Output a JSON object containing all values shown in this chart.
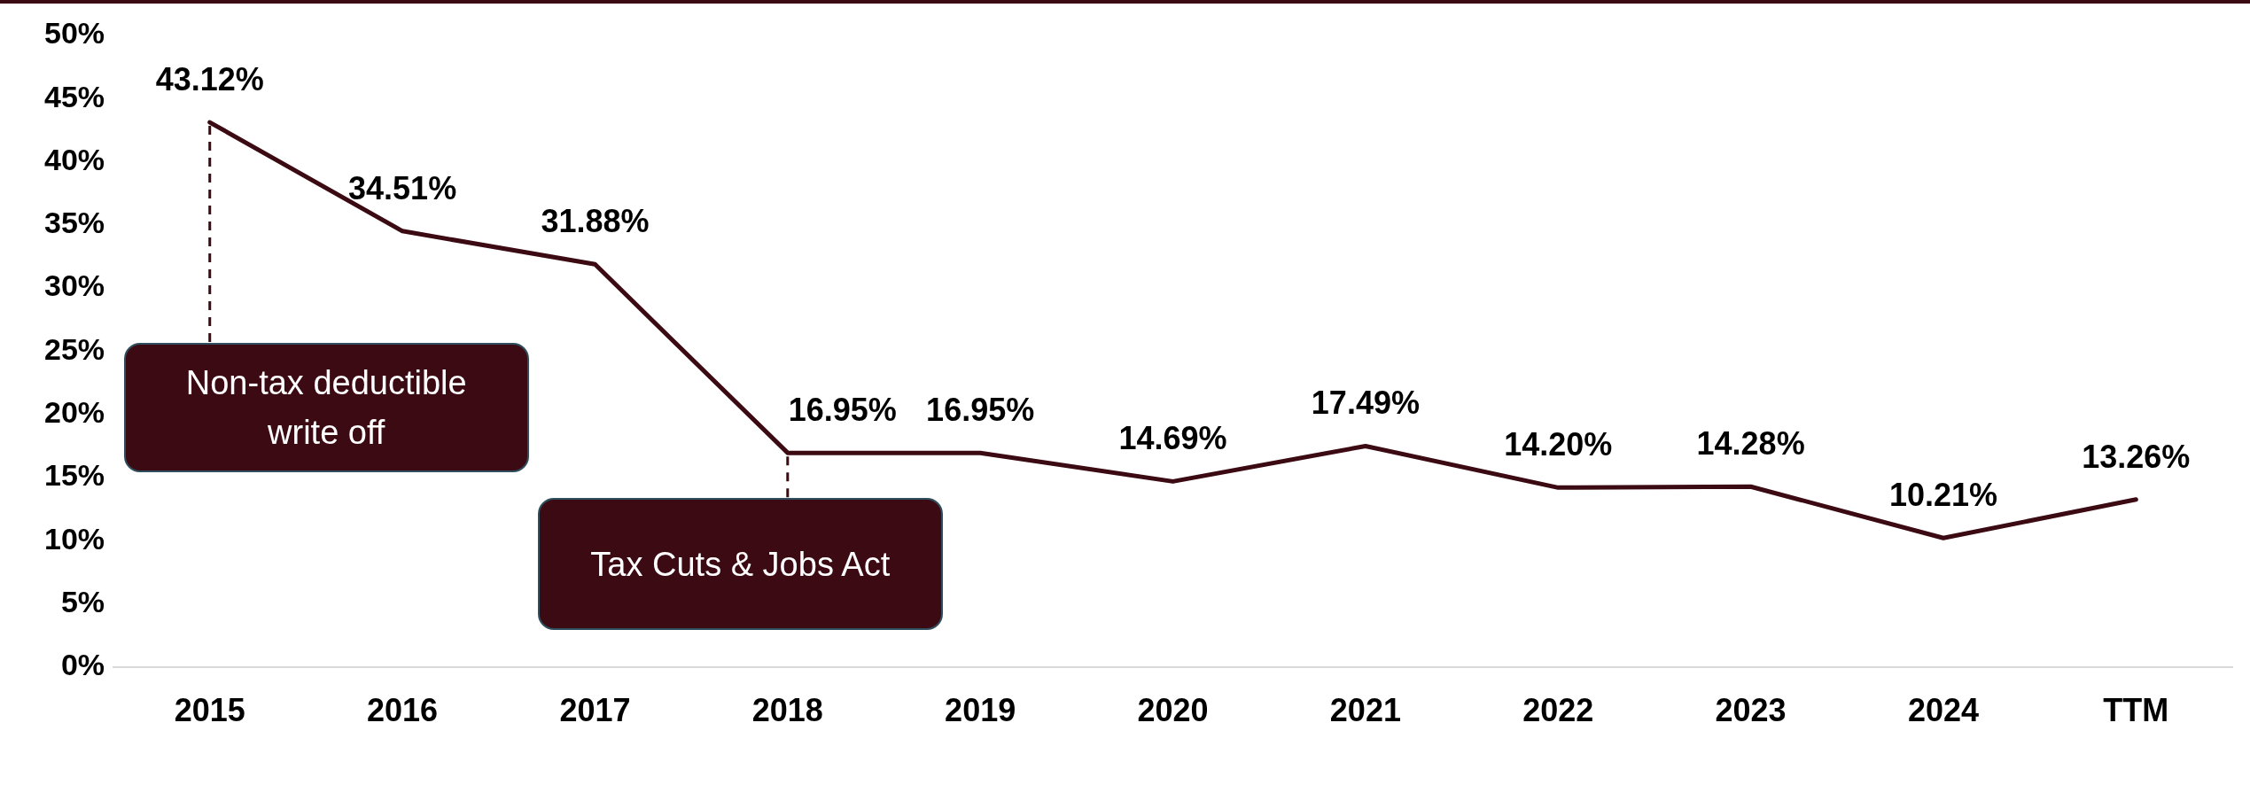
{
  "chart_data": {
    "type": "line",
    "categories": [
      "2015",
      "2016",
      "2017",
      "2018",
      "2019",
      "2020",
      "2021",
      "2022",
      "2023",
      "2024",
      "TTM"
    ],
    "series": [
      {
        "color": "#3b0a12",
        "values": [
          43.12,
          34.51,
          31.88,
          16.95,
          16.95,
          14.69,
          17.49,
          14.2,
          14.28,
          10.21,
          13.26
        ]
      }
    ],
    "value_labels": [
      "43.12%",
      "34.51%",
      "31.88%",
      "16.95%",
      "16.95%",
      "14.69%",
      "17.49%",
      "14.20%",
      "14.28%",
      "10.21%",
      "13.26%"
    ],
    "ylim": [
      0,
      50
    ],
    "yticks": [
      {
        "value": 0,
        "label": "0%"
      },
      {
        "value": 5,
        "label": "5%"
      },
      {
        "value": 10,
        "label": "10%"
      },
      {
        "value": 15,
        "label": "15%"
      },
      {
        "value": 20,
        "label": "20%"
      },
      {
        "value": 25,
        "label": "25%"
      },
      {
        "value": 30,
        "label": "30%"
      },
      {
        "value": 35,
        "label": "35%"
      },
      {
        "value": 40,
        "label": "40%"
      },
      {
        "value": 45,
        "label": "45%"
      },
      {
        "value": 50,
        "label": "50%"
      }
    ],
    "annotations": [
      {
        "text": "Non-tax deductible write off",
        "x": "2015",
        "y": 43.12
      },
      {
        "text": "Tax Cuts & Jobs Act",
        "x": "2018",
        "y": 16.95
      }
    ],
    "grid": false,
    "legend": false,
    "marker": "none",
    "line_style": "solid"
  }
}
